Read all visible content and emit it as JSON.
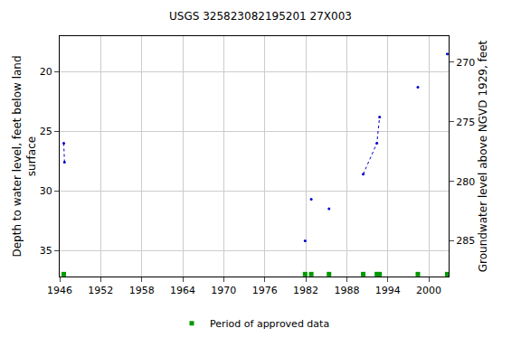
{
  "chart_data": {
    "type": "scatter",
    "title": "USGS 325823082195201 27X003",
    "x_label": "",
    "y_label": "Depth to water level, feet below land surface",
    "y2_label": "Groundwater level above NGVD 1929, feet",
    "xlim": [
      1946,
      2002.9
    ],
    "xticks": [
      1946,
      1952,
      1958,
      1964,
      1970,
      1976,
      1982,
      1988,
      1994,
      2000
    ],
    "ylim": [
      37.2,
      17
    ],
    "yticks": [
      20,
      25,
      30,
      35
    ],
    "y2lim": [
      288,
      267.8
    ],
    "y2ticks": [
      270,
      275,
      280,
      285
    ],
    "grid": true,
    "legend": "bottom",
    "series": [
      {
        "color": "#0000cc",
        "marker": "circle",
        "line_style": "dotted",
        "type": "line",
        "x": [
          1946.6,
          1946.7,
          1981.9,
          1981.9,
          1982.8,
          1982.8,
          1985.4,
          1985.4,
          1990.4,
          1990.4,
          1992.4,
          1992.8,
          1998.4,
          1998.4,
          2002.7
        ],
        "values": [
          26.0,
          27.6,
          null,
          34.2,
          null,
          30.7,
          null,
          31.5,
          null,
          28.6,
          26.0,
          23.8,
          null,
          21.3,
          null
        ]
      },
      {
        "name": "Period of approved data",
        "color": "#009900",
        "marker": "square",
        "type": "scatter",
        "x": [
          1946.6,
          1981.9,
          1982.8,
          1985.4,
          1990.4,
          1992.4,
          1992.8,
          1998.4,
          2002.7
        ],
        "values": [
          37,
          37,
          37,
          37,
          37,
          37,
          37,
          37,
          37
        ]
      },
      {
        "color": "#0000cc",
        "marker": "circle",
        "type": "scatter",
        "axis": "y2",
        "x": [
          2002.7
        ],
        "values": [
          269.3
        ]
      }
    ]
  }
}
